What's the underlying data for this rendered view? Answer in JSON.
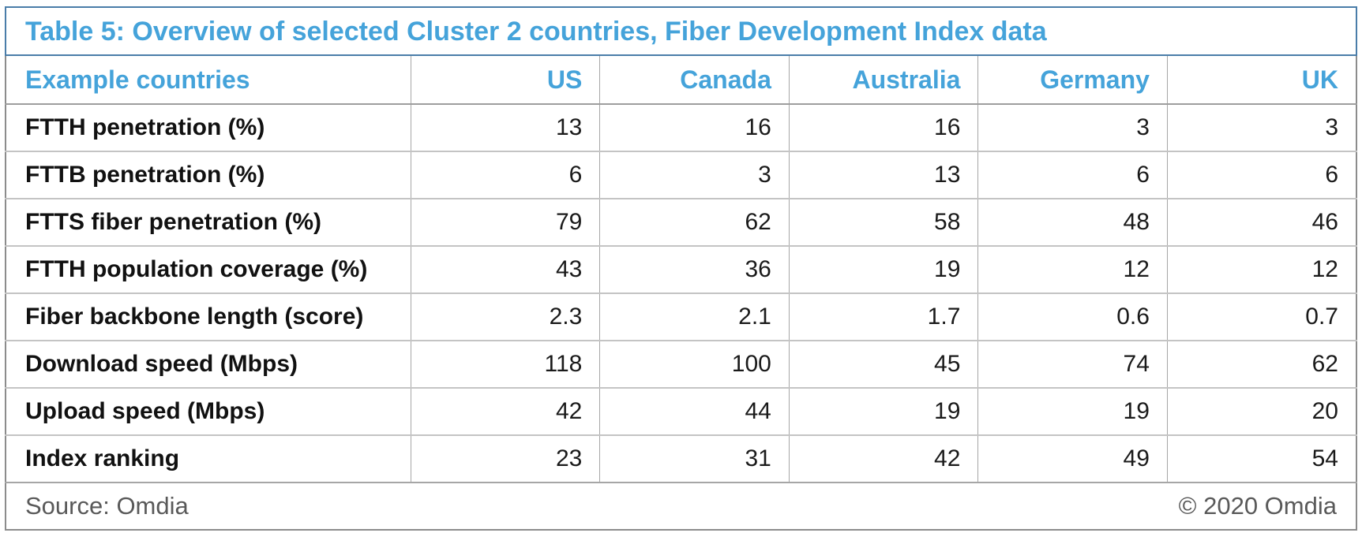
{
  "accent_color": "#45a3da",
  "border_blue": "#4a7da9",
  "border_gray": "#8c8c8c",
  "title": "Table 5: Overview of selected Cluster 2 countries, Fiber Development Index data",
  "footer": {
    "source": "Source: Omdia",
    "copyright": "© 2020 Omdia"
  },
  "chart_data": {
    "type": "table",
    "title": "Table 5: Overview of selected Cluster 2 countries, Fiber Development Index data",
    "columns": [
      "Example countries",
      "US",
      "Canada",
      "Australia",
      "Germany",
      "UK"
    ],
    "rows": [
      {
        "label": "FTTH penetration (%)",
        "values": [
          13,
          16,
          16,
          3,
          3
        ]
      },
      {
        "label": "FTTB penetration (%)",
        "values": [
          6,
          3,
          13,
          6,
          6
        ]
      },
      {
        "label": "FTTS fiber penetration (%)",
        "values": [
          79,
          62,
          58,
          48,
          46
        ]
      },
      {
        "label": "FTTH population coverage (%)",
        "values": [
          43,
          36,
          19,
          12,
          12
        ]
      },
      {
        "label": "Fiber backbone length (score)",
        "values": [
          2.3,
          2.1,
          1.7,
          0.6,
          0.7
        ]
      },
      {
        "label": "Download speed (Mbps)",
        "values": [
          118,
          100,
          45,
          74,
          62
        ]
      },
      {
        "label": "Upload speed (Mbps)",
        "values": [
          42,
          44,
          19,
          19,
          20
        ]
      },
      {
        "label": "Index ranking",
        "values": [
          23,
          31,
          42,
          49,
          54
        ]
      }
    ],
    "source": "Source: Omdia",
    "copyright": "© 2020 Omdia",
    "layout": {
      "label_col_width_pct": 30,
      "value_col_width_pct": 14,
      "header_text_color": "#45a3da",
      "grid": "on"
    }
  }
}
